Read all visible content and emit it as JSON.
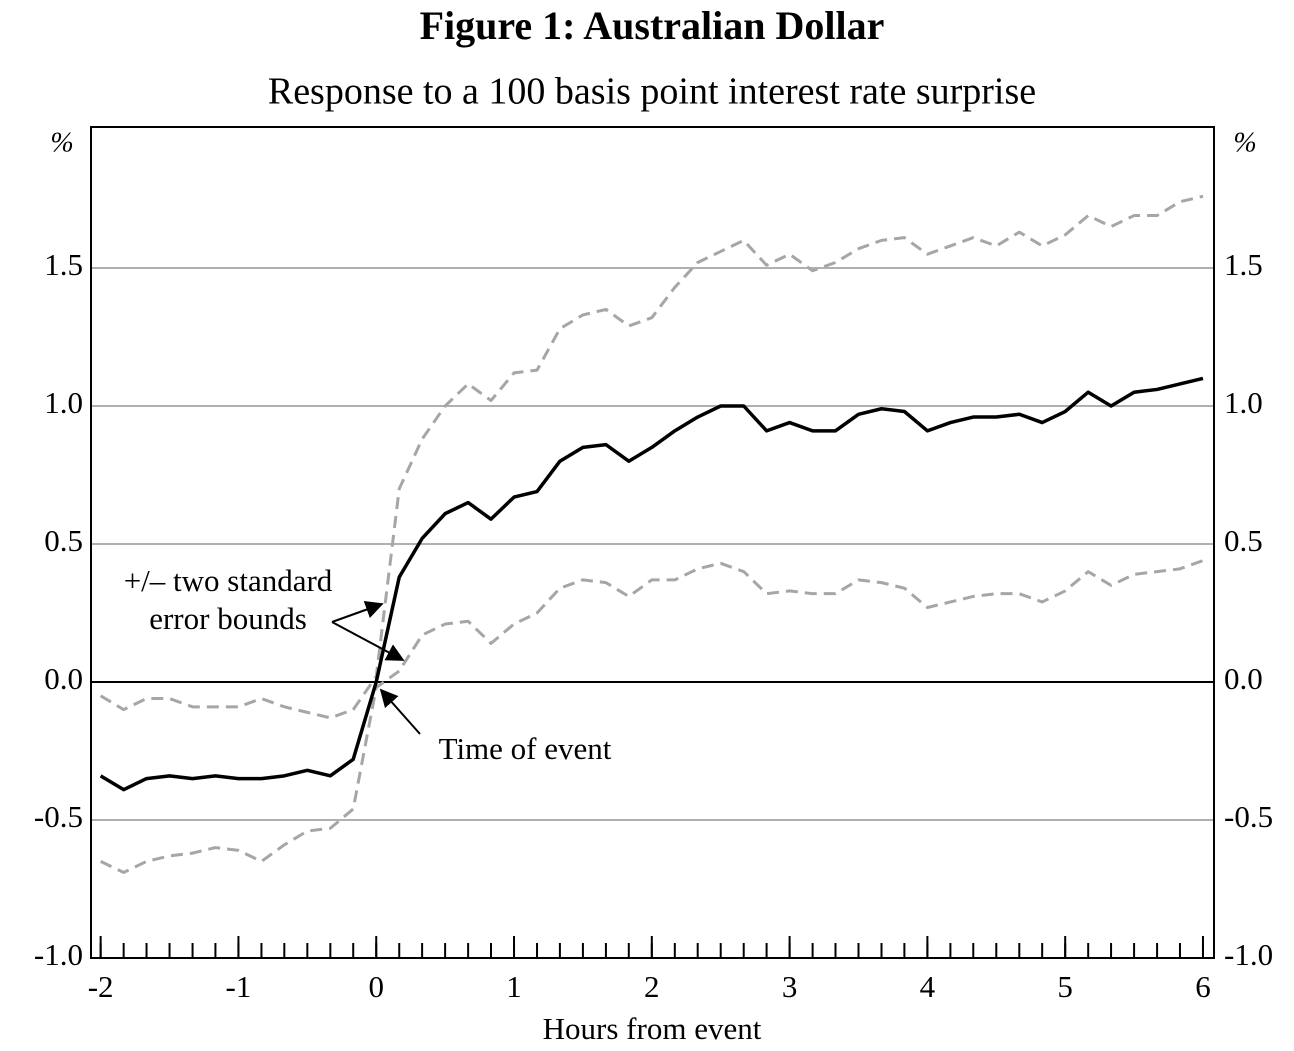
{
  "chart_data": {
    "type": "line",
    "title": "Figure 1: Australian Dollar",
    "subtitle": "Response to a 100 basis point interest rate surprise",
    "x_label": "Hours from event",
    "y_label": "%",
    "y2_label": "%",
    "annotations": [
      "+/– two standard",
      "error bounds",
      "Time of event"
    ],
    "x": [
      -2,
      -1.833,
      -1.667,
      -1.5,
      -1.333,
      -1.167,
      -1,
      -0.833,
      -0.667,
      -0.5,
      -0.333,
      -0.167,
      0,
      0.167,
      0.333,
      0.5,
      0.667,
      0.833,
      1,
      1.167,
      1.333,
      1.5,
      1.667,
      1.833,
      2,
      2.167,
      2.333,
      2.5,
      2.667,
      2.833,
      3,
      3.167,
      3.333,
      3.5,
      3.667,
      3.833,
      4,
      4.167,
      4.333,
      4.5,
      4.667,
      4.833,
      5,
      5.167,
      5.333,
      5.5,
      5.667,
      5.833,
      6
    ],
    "series": [
      {
        "color": "#000000",
        "dashed": false,
        "values": [
          -0.34,
          -0.39,
          -0.35,
          -0.34,
          -0.35,
          -0.34,
          -0.35,
          -0.35,
          -0.34,
          -0.32,
          -0.34,
          -0.28,
          0,
          0.38,
          0.52,
          0.61,
          0.65,
          0.59,
          0.67,
          0.69,
          0.8,
          0.85,
          0.86,
          0.8,
          0.85,
          0.91,
          0.96,
          1.0,
          1.0,
          0.91,
          0.94,
          0.91,
          0.91,
          0.97,
          0.99,
          0.98,
          0.91,
          0.94,
          0.96,
          0.96,
          0.97,
          0.94,
          0.98,
          1.05,
          1.0,
          1.05,
          1.06,
          1.08,
          1.1
        ]
      },
      {
        "color": "#a6a6a6",
        "dashed": true,
        "values": [
          -0.05,
          -0.1,
          -0.06,
          -0.06,
          -0.09,
          -0.09,
          -0.09,
          -0.06,
          -0.09,
          -0.11,
          -0.13,
          -0.1,
          0.02,
          0.7,
          0.88,
          1.0,
          1.08,
          1.02,
          1.12,
          1.13,
          1.28,
          1.33,
          1.35,
          1.29,
          1.32,
          1.43,
          1.52,
          1.56,
          1.6,
          1.51,
          1.55,
          1.49,
          1.52,
          1.57,
          1.6,
          1.61,
          1.55,
          1.58,
          1.61,
          1.58,
          1.63,
          1.58,
          1.62,
          1.69,
          1.65,
          1.69,
          1.69,
          1.74,
          1.76
        ]
      },
      {
        "color": "#a6a6a6",
        "dashed": true,
        "values": [
          -0.65,
          -0.69,
          -0.65,
          -0.63,
          -0.62,
          -0.6,
          -0.61,
          -0.65,
          -0.59,
          -0.54,
          -0.53,
          -0.46,
          -0.02,
          0.04,
          0.17,
          0.21,
          0.22,
          0.14,
          0.21,
          0.25,
          0.34,
          0.37,
          0.36,
          0.31,
          0.37,
          0.37,
          0.41,
          0.43,
          0.4,
          0.32,
          0.33,
          0.32,
          0.32,
          0.37,
          0.36,
          0.34,
          0.27,
          0.29,
          0.31,
          0.32,
          0.32,
          0.29,
          0.33,
          0.4,
          0.35,
          0.39,
          0.4,
          0.41,
          0.44
        ]
      }
    ],
    "xlim": [
      -2.07,
      6.08
    ],
    "xticks": [
      -2,
      -1,
      0,
      1,
      2,
      3,
      4,
      5,
      6
    ],
    "ylim": [
      -1,
      2
    ],
    "yticks": [
      {
        "value": -1,
        "label": "-1.0"
      },
      -0.5,
      {
        "value": 0,
        "label": "0.0"
      },
      0.5,
      {
        "value": 1,
        "label": "1.0"
      },
      1.5
    ],
    "y2lim": [
      -1,
      2
    ],
    "y2ticks": [
      {
        "value": -1,
        "label": "-1.0"
      },
      -0.5,
      {
        "value": 0,
        "label": "0.0"
      },
      0.5,
      {
        "value": 1,
        "label": "1.0"
      },
      1.5
    ],
    "grid": true
  }
}
